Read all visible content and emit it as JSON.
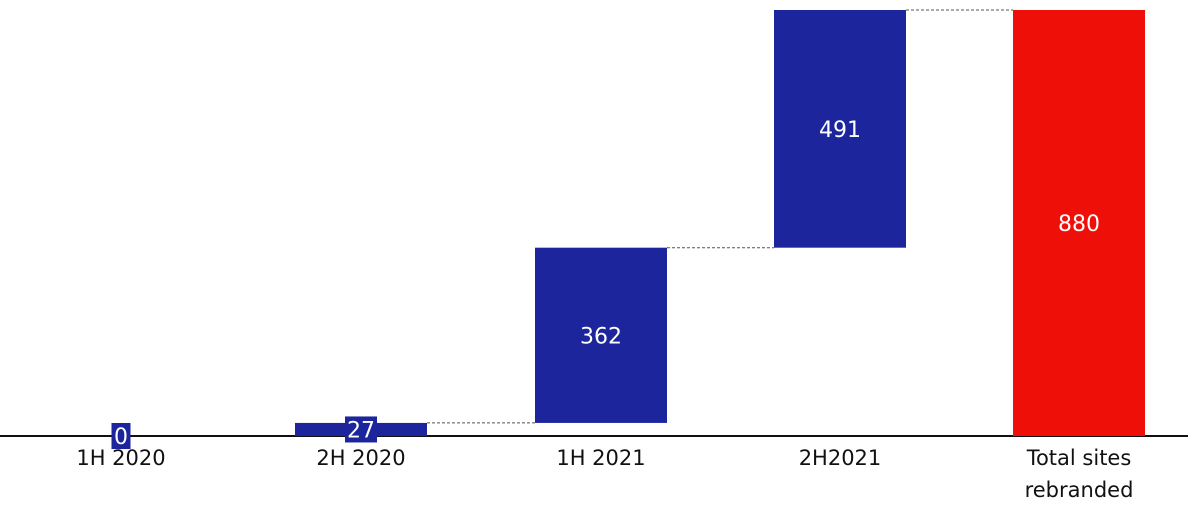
{
  "chart_data": {
    "type": "bar",
    "subtype": "waterfall",
    "title": "",
    "xlabel": "",
    "ylabel": "",
    "categories": [
      "1H 2020",
      "2H 2020",
      "1H 2021",
      "2H2021",
      "Total sites rebranded"
    ],
    "category_label_lines": [
      [
        "1H 2020"
      ],
      [
        "2H 2020"
      ],
      [
        "1H 2021"
      ],
      [
        "2H2021"
      ],
      [
        "Total sites",
        "rebranded"
      ]
    ],
    "values": [
      0,
      27,
      362,
      491,
      880
    ],
    "data_labels": [
      "0",
      "27",
      "362",
      "491",
      "880"
    ],
    "is_total": [
      false,
      false,
      false,
      false,
      true
    ],
    "ylim": [
      0,
      880
    ],
    "grid": false,
    "legend": "none",
    "colors": {
      "increment": "#1c259b",
      "total": "#ee0f08",
      "label_text": "#ffffff",
      "axis": "#111111",
      "connector": "#555555",
      "category_text": "#111111"
    }
  }
}
